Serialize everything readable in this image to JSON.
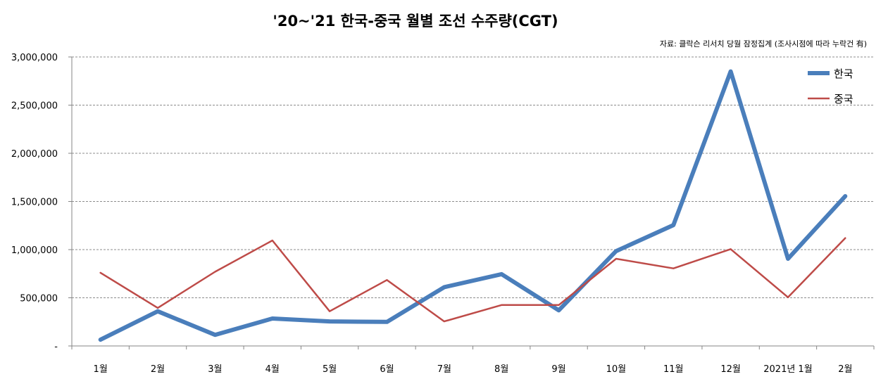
{
  "chart_data": {
    "type": "line",
    "title": "'20~'21 한국-중국 월별 조선 수주량(CGT)",
    "source_note": "자료: 클락슨 리서치 당월 잠정집계 (조사시점에 따라 누락건 有)",
    "categories": [
      "1월",
      "2월",
      "3월",
      "4월",
      "5월",
      "6월",
      "7월",
      "8월",
      "9월",
      "10월",
      "11월",
      "12월",
      "2021년 1월",
      "2월"
    ],
    "series": [
      {
        "name": "한국",
        "color": "#4a7ebb",
        "values": [
          65000,
          360000,
          115000,
          285000,
          255000,
          250000,
          610000,
          745000,
          370000,
          985000,
          1255000,
          2850000,
          905000,
          1555000
        ]
      },
      {
        "name": "중국",
        "color": "#be4b48",
        "values": [
          760000,
          395000,
          770000,
          1095000,
          360000,
          685000,
          255000,
          425000,
          425000,
          905000,
          805000,
          1005000,
          505000,
          1120000
        ]
      }
    ],
    "ylim": [
      0,
      3000000
    ],
    "y_ticks": [
      0,
      500000,
      1000000,
      1500000,
      2000000,
      2500000,
      3000000
    ],
    "y_tick_labels": [
      "-",
      "500,000",
      "1,000,000",
      "1,500,000",
      "2,000,000",
      "2,500,000",
      "3,000,000"
    ],
    "grid": "horizontal dashed",
    "legend_position": "top-right"
  }
}
